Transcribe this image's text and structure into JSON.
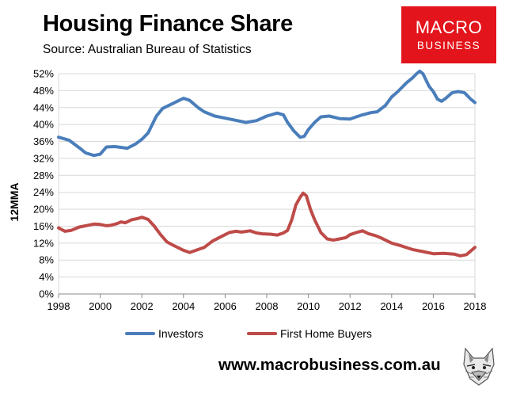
{
  "title": "Housing Finance Share",
  "subtitle": "Source: Australian Bureau of Statistics",
  "brand": {
    "line1": "MACRO",
    "line2": "BUSINESS",
    "color": "#e3141b"
  },
  "website": "www.macrobusiness.com.au",
  "logo_icon": "wolf-icon",
  "chart_data": {
    "type": "line",
    "title": "Housing Finance Share",
    "ylabel": "12MMA",
    "xlabel": "",
    "xlim": [
      1998,
      2018
    ],
    "ylim": [
      0,
      52
    ],
    "yticks": [
      0,
      4,
      8,
      12,
      16,
      20,
      24,
      28,
      32,
      36,
      40,
      44,
      48,
      52
    ],
    "ytick_labels": [
      "0%",
      "4%",
      "8%",
      "12%",
      "16%",
      "20%",
      "24%",
      "28%",
      "32%",
      "36%",
      "40%",
      "44%",
      "48%",
      "52%"
    ],
    "xticks": [
      1998,
      2000,
      2002,
      2004,
      2006,
      2008,
      2010,
      2012,
      2014,
      2016,
      2018
    ],
    "xtick_labels": [
      "1998",
      "2000",
      "2002",
      "2004",
      "2006",
      "2008",
      "2010",
      "2012",
      "2014",
      "2016",
      "2018"
    ],
    "grid": true,
    "legend_position": "bottom",
    "series": [
      {
        "name": "Investors",
        "color": "#4a7ebb",
        "points": [
          [
            1998.0,
            37.0
          ],
          [
            1998.5,
            36.3
          ],
          [
            1999.0,
            34.5
          ],
          [
            1999.3,
            33.3
          ],
          [
            1999.7,
            32.7
          ],
          [
            2000.0,
            33.0
          ],
          [
            2000.3,
            34.7
          ],
          [
            2000.7,
            34.8
          ],
          [
            2001.0,
            34.6
          ],
          [
            2001.3,
            34.4
          ],
          [
            2001.7,
            35.4
          ],
          [
            2002.0,
            36.5
          ],
          [
            2002.3,
            38.0
          ],
          [
            2002.7,
            42.0
          ],
          [
            2003.0,
            43.8
          ],
          [
            2003.5,
            45.0
          ],
          [
            2004.0,
            46.2
          ],
          [
            2004.3,
            45.7
          ],
          [
            2004.7,
            44.0
          ],
          [
            2005.0,
            43.0
          ],
          [
            2005.5,
            42.0
          ],
          [
            2006.0,
            41.5
          ],
          [
            2006.5,
            41.0
          ],
          [
            2007.0,
            40.5
          ],
          [
            2007.5,
            40.9
          ],
          [
            2008.0,
            42.0
          ],
          [
            2008.5,
            42.7
          ],
          [
            2008.8,
            42.3
          ],
          [
            2009.0,
            40.5
          ],
          [
            2009.3,
            38.5
          ],
          [
            2009.6,
            37.0
          ],
          [
            2009.8,
            37.2
          ],
          [
            2010.0,
            38.8
          ],
          [
            2010.3,
            40.5
          ],
          [
            2010.6,
            41.8
          ],
          [
            2011.0,
            42.0
          ],
          [
            2011.5,
            41.4
          ],
          [
            2012.0,
            41.3
          ],
          [
            2012.3,
            41.8
          ],
          [
            2012.6,
            42.3
          ],
          [
            2013.0,
            42.8
          ],
          [
            2013.3,
            43.0
          ],
          [
            2013.7,
            44.5
          ],
          [
            2014.0,
            46.5
          ],
          [
            2014.3,
            47.8
          ],
          [
            2014.7,
            49.8
          ],
          [
            2015.0,
            51.0
          ],
          [
            2015.2,
            52.0
          ],
          [
            2015.35,
            52.6
          ],
          [
            2015.5,
            52.0
          ],
          [
            2015.8,
            49.0
          ],
          [
            2016.0,
            47.8
          ],
          [
            2016.2,
            46.0
          ],
          [
            2016.4,
            45.5
          ],
          [
            2016.6,
            46.2
          ],
          [
            2016.9,
            47.5
          ],
          [
            2017.2,
            47.8
          ],
          [
            2017.5,
            47.5
          ],
          [
            2017.8,
            46.0
          ],
          [
            2018.0,
            45.2
          ]
        ]
      },
      {
        "name": "First Home Buyers",
        "color": "#be4b48",
        "points": [
          [
            1998.0,
            15.6
          ],
          [
            1998.3,
            14.8
          ],
          [
            1998.6,
            15.0
          ],
          [
            1999.0,
            15.8
          ],
          [
            1999.4,
            16.2
          ],
          [
            1999.7,
            16.5
          ],
          [
            2000.0,
            16.4
          ],
          [
            2000.3,
            16.1
          ],
          [
            2000.5,
            16.2
          ],
          [
            2000.8,
            16.6
          ],
          [
            2001.0,
            17.0
          ],
          [
            2001.2,
            16.8
          ],
          [
            2001.5,
            17.5
          ],
          [
            2001.8,
            17.8
          ],
          [
            2002.0,
            18.1
          ],
          [
            2002.3,
            17.6
          ],
          [
            2002.6,
            16.0
          ],
          [
            2002.9,
            14.0
          ],
          [
            2003.2,
            12.3
          ],
          [
            2003.5,
            11.5
          ],
          [
            2003.8,
            10.8
          ],
          [
            2004.0,
            10.3
          ],
          [
            2004.3,
            9.8
          ],
          [
            2004.6,
            10.3
          ],
          [
            2005.0,
            11.0
          ],
          [
            2005.4,
            12.5
          ],
          [
            2005.8,
            13.5
          ],
          [
            2006.2,
            14.5
          ],
          [
            2006.5,
            14.8
          ],
          [
            2006.8,
            14.6
          ],
          [
            2007.2,
            14.9
          ],
          [
            2007.5,
            14.4
          ],
          [
            2007.8,
            14.2
          ],
          [
            2008.2,
            14.1
          ],
          [
            2008.5,
            13.9
          ],
          [
            2008.8,
            14.4
          ],
          [
            2009.0,
            15.0
          ],
          [
            2009.2,
            17.5
          ],
          [
            2009.4,
            21.0
          ],
          [
            2009.6,
            22.8
          ],
          [
            2009.75,
            23.8
          ],
          [
            2009.9,
            23.2
          ],
          [
            2010.1,
            20.0
          ],
          [
            2010.3,
            17.5
          ],
          [
            2010.6,
            14.5
          ],
          [
            2010.9,
            13.0
          ],
          [
            2011.2,
            12.7
          ],
          [
            2011.5,
            13.0
          ],
          [
            2011.8,
            13.3
          ],
          [
            2012.0,
            14.0
          ],
          [
            2012.3,
            14.5
          ],
          [
            2012.6,
            14.9
          ],
          [
            2012.9,
            14.2
          ],
          [
            2013.2,
            13.8
          ],
          [
            2013.5,
            13.2
          ],
          [
            2014.0,
            12.0
          ],
          [
            2014.5,
            11.3
          ],
          [
            2015.0,
            10.5
          ],
          [
            2015.5,
            10.0
          ],
          [
            2016.0,
            9.5
          ],
          [
            2016.5,
            9.6
          ],
          [
            2017.0,
            9.4
          ],
          [
            2017.3,
            9.0
          ],
          [
            2017.6,
            9.3
          ],
          [
            2018.0,
            11.0
          ]
        ]
      }
    ]
  }
}
